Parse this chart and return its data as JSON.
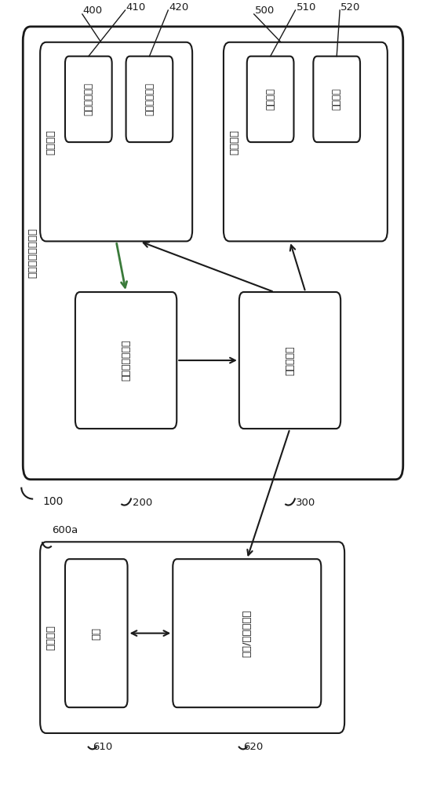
{
  "bg_color": "#ffffff",
  "line_color": "#1a1a1a",
  "text_color": "#1a1a1a",
  "fig_width": 5.43,
  "fig_height": 10.0,
  "dpi": 100,
  "labels": {
    "system_100": "100",
    "system_label": "动能回充控制系统",
    "energy_device": "储能装置",
    "energy_elem1": "第一储能元件",
    "energy_elem2": "第二储能元件",
    "load_device": "负载装置",
    "load1": "第一负载",
    "load2": "第二负载",
    "kinetic_controller": "动能回充控制器",
    "power_distributor": "分配功率器",
    "power_system": "动力系统",
    "motor": "马达",
    "dc_ac": "直流/交流转换器",
    "lbl_400": "400",
    "lbl_410": "410",
    "lbl_420": "420",
    "lbl_500": "500",
    "lbl_510": "510",
    "lbl_520": "520",
    "lbl_200": "200",
    "lbl_300": "300",
    "lbl_600a": "600a",
    "lbl_610": "610",
    "lbl_620": "620"
  }
}
